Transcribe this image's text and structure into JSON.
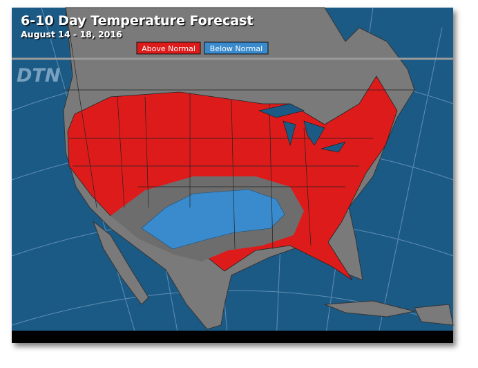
{
  "header": {
    "title": "6-10 Day Temperature Forecast",
    "subtitle": "August 14 - 18, 2016"
  },
  "legend": {
    "items": [
      "Above Normal",
      "Below Normal"
    ]
  },
  "watermark": "DTN"
}
